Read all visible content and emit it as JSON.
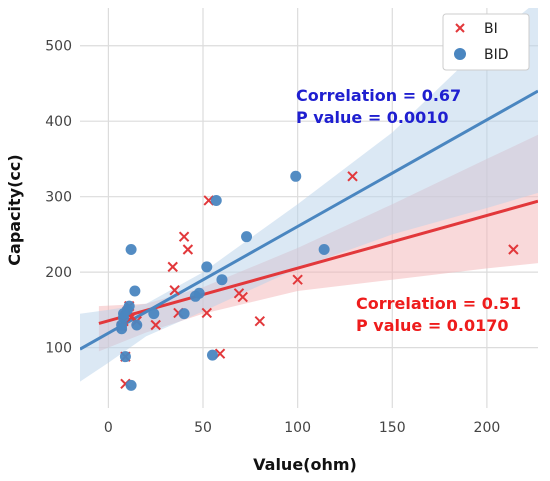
{
  "chart_data": {
    "type": "scatter",
    "xlabel": "Value(ohm)",
    "ylabel": "Capacity(cc)",
    "xlim": [
      -15,
      227
    ],
    "ylim": [
      20,
      550
    ],
    "xticks": [
      0,
      50,
      100,
      150,
      200
    ],
    "yticks": [
      100,
      200,
      300,
      400,
      500
    ],
    "grid": true,
    "legend_position": "top-right",
    "series": [
      {
        "name": "BI",
        "marker": "x",
        "color": "#e2383b",
        "band_color": "#f4b3b5",
        "points": [
          [
            7,
            128
          ],
          [
            8,
            135
          ],
          [
            9,
            142
          ],
          [
            9,
            88
          ],
          [
            9,
            52
          ],
          [
            10,
            148
          ],
          [
            11,
            155
          ],
          [
            12,
            140
          ],
          [
            15,
            135
          ],
          [
            25,
            130
          ],
          [
            34,
            207
          ],
          [
            35,
            176
          ],
          [
            37,
            146
          ],
          [
            40,
            247
          ],
          [
            42,
            230
          ],
          [
            52,
            146
          ],
          [
            53,
            295
          ],
          [
            59,
            92
          ],
          [
            69,
            172
          ],
          [
            71,
            167
          ],
          [
            80,
            135
          ],
          [
            100,
            190
          ],
          [
            129,
            327
          ],
          [
            214,
            230
          ]
        ],
        "fit": {
          "x0": -5,
          "y0": 132,
          "x1": 227,
          "y1": 294
        },
        "band": {
          "upper": [
            [
              -5,
              155
            ],
            [
              20,
              158
            ],
            [
              50,
              180
            ],
            [
              100,
              232
            ],
            [
              150,
              290
            ],
            [
              200,
              350
            ],
            [
              227,
              382
            ]
          ],
          "lower": [
            [
              227,
              212
            ],
            [
              200,
              205
            ],
            [
              150,
              190
            ],
            [
              100,
              175
            ],
            [
              50,
              145
            ],
            [
              20,
              120
            ],
            [
              -5,
              95
            ]
          ]
        },
        "annotation": [
          "Correlation = 0.51",
          "P value = 0.0170"
        ]
      },
      {
        "name": "BID",
        "marker": "o",
        "color": "#4a86c0",
        "band_color": "#b8d2ea",
        "points": [
          [
            7,
            125
          ],
          [
            7,
            130
          ],
          [
            8,
            140
          ],
          [
            8,
            145
          ],
          [
            9,
            88
          ],
          [
            10,
            150
          ],
          [
            11,
            155
          ],
          [
            12,
            230
          ],
          [
            12,
            50
          ],
          [
            14,
            175
          ],
          [
            15,
            130
          ],
          [
            24,
            145
          ],
          [
            40,
            145
          ],
          [
            46,
            168
          ],
          [
            48,
            172
          ],
          [
            52,
            207
          ],
          [
            55,
            90
          ],
          [
            57,
            295
          ],
          [
            60,
            190
          ],
          [
            73,
            247
          ],
          [
            99,
            327
          ],
          [
            114,
            230
          ]
        ],
        "fit": {
          "x0": -15,
          "y0": 98,
          "x1": 227,
          "y1": 440
        },
        "band": {
          "upper": [
            [
              -15,
              145
            ],
            [
              0,
              150
            ],
            [
              20,
              158
            ],
            [
              50,
              200
            ],
            [
              100,
              290
            ],
            [
              150,
              385
            ],
            [
              200,
              505
            ],
            [
              227,
              560
            ]
          ],
          "lower": [
            [
              227,
              305
            ],
            [
              200,
              285
            ],
            [
              150,
              250
            ],
            [
              100,
              205
            ],
            [
              50,
              148
            ],
            [
              20,
              115
            ],
            [
              0,
              80
            ],
            [
              -15,
              55
            ]
          ]
        },
        "annotation": [
          "Correlation = 0.67",
          "P value = 0.0010"
        ]
      }
    ]
  }
}
